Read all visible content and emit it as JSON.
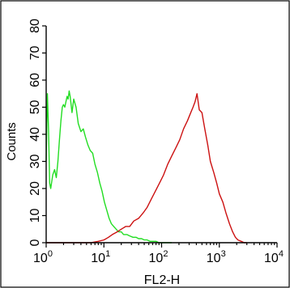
{
  "chart_data": {
    "type": "line",
    "xlabel": "FL2-H",
    "ylabel": "Counts",
    "x_scale": "log",
    "xlim": [
      1,
      10000
    ],
    "ylim": [
      0,
      80
    ],
    "x_ticks": [
      {
        "base": "10",
        "exp": "0"
      },
      {
        "base": "10",
        "exp": "1"
      },
      {
        "base": "10",
        "exp": "2"
      },
      {
        "base": "10",
        "exp": "3"
      },
      {
        "base": "10",
        "exp": "4"
      }
    ],
    "y_ticks": [
      "0",
      "10",
      "20",
      "30",
      "40",
      "50",
      "60",
      "70",
      "80"
    ],
    "grid": false,
    "series": [
      {
        "color": "#22dd22",
        "x": [
          1.0,
          1.05,
          1.1,
          1.15,
          1.2,
          1.3,
          1.4,
          1.5,
          1.6,
          1.7,
          1.8,
          1.9,
          2.0,
          2.1,
          2.2,
          2.3,
          2.4,
          2.5,
          2.6,
          2.8,
          3.0,
          3.3,
          3.6,
          4.0,
          4.4,
          4.8,
          5.3,
          5.8,
          6.4,
          7.0,
          7.7,
          8.5,
          9.3,
          10.2,
          11.2,
          12.3,
          13.5,
          14.8,
          16.3,
          18.0,
          20.0,
          22.0,
          25.0,
          28.0,
          32.0,
          36.0,
          40.0,
          45.0,
          50.0,
          56.0,
          63.0,
          70.0,
          80.0,
          90.0,
          100.0,
          115.0,
          130.0,
          150.0
        ],
        "y": [
          30,
          55,
          42,
          22,
          20,
          25,
          27,
          24,
          30,
          38,
          45,
          50,
          51,
          50,
          52,
          54,
          53,
          56,
          54,
          48,
          53,
          50,
          44,
          41,
          42,
          39,
          36,
          34,
          33,
          29,
          26,
          22,
          19,
          15,
          12,
          9,
          7,
          6,
          5,
          4,
          4,
          3,
          3,
          2.5,
          2,
          2,
          1.5,
          1.5,
          1,
          1,
          0.5,
          0.5,
          0.5,
          0,
          0,
          0,
          0,
          0
        ]
      },
      {
        "color": "#cc1111",
        "x": [
          1.0,
          2.0,
          4.0,
          6.0,
          8.0,
          10.0,
          12.0,
          14.0,
          17.0,
          20.0,
          24.0,
          28.0,
          33.0,
          40.0,
          48.0,
          56.0,
          66.0,
          78.0,
          92.0,
          108.0,
          128.0,
          150.0,
          176.0,
          206.0,
          240.0,
          280.0,
          320.0,
          350.0,
          380.0,
          410.0,
          450.0,
          500.0,
          560.0,
          630.0,
          700.0,
          800.0,
          900.0,
          1000.0,
          1150.0,
          1300.0,
          1500.0,
          1700.0,
          1900.0,
          2100.0,
          2400.0,
          2700.0,
          3000.0
        ],
        "y": [
          0,
          0,
          0,
          0,
          0.5,
          1,
          2,
          3,
          4,
          5,
          6,
          6,
          8,
          9,
          11,
          13,
          16,
          19,
          22,
          25,
          29,
          32,
          35,
          38,
          42,
          45,
          48,
          50,
          52,
          55,
          49,
          48,
          42,
          36,
          30,
          26,
          22,
          18,
          15,
          11,
          7,
          4,
          2,
          1,
          0.5,
          0,
          0
        ]
      }
    ]
  }
}
